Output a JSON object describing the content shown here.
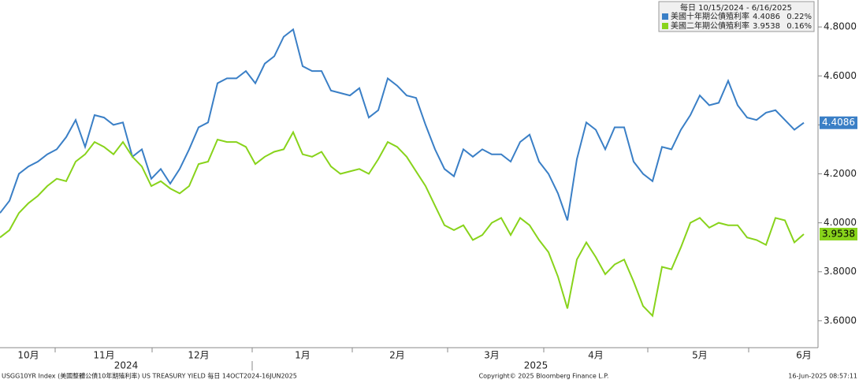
{
  "chart_data": {
    "type": "line",
    "legend_header": "每日 10/15/2024 - 6/16/2025",
    "categories": [
      null,
      null,
      null,
      "10月",
      null,
      null,
      null,
      null,
      null,
      null,
      null,
      "11月",
      null,
      null,
      null,
      null,
      null,
      null,
      null,
      null,
      null,
      "12月",
      null,
      null,
      null,
      null,
      null,
      null,
      null,
      null,
      null,
      null,
      "1月",
      null,
      null,
      null,
      null,
      null,
      null,
      null,
      null,
      null,
      "2月",
      null,
      null,
      null,
      null,
      null,
      null,
      null,
      null,
      null,
      "3月",
      null,
      null,
      null,
      null,
      null,
      null,
      null,
      null,
      null,
      null,
      "4月",
      null,
      null,
      null,
      null,
      null,
      null,
      null,
      null,
      null,
      null,
      "5月",
      null,
      null,
      null,
      null,
      null,
      null,
      null,
      null,
      null,
      null,
      "6月"
    ],
    "year_labels": [
      "2024",
      "2025"
    ],
    "series": [
      {
        "name": "美國十年期公債殖利率",
        "color": "#3a7fc6",
        "change": "0.22%",
        "values": [
          4.04,
          4.09,
          4.2,
          4.23,
          4.25,
          4.28,
          4.3,
          4.35,
          4.42,
          4.31,
          4.44,
          4.43,
          4.4,
          4.41,
          4.27,
          4.3,
          4.18,
          4.22,
          4.16,
          4.22,
          4.3,
          4.39,
          4.41,
          4.57,
          4.59,
          4.59,
          4.62,
          4.57,
          4.65,
          4.68,
          4.76,
          4.79,
          4.64,
          4.62,
          4.62,
          4.54,
          4.53,
          4.52,
          4.55,
          4.43,
          4.46,
          4.59,
          4.56,
          4.52,
          4.51,
          4.4,
          4.3,
          4.22,
          4.19,
          4.3,
          4.27,
          4.3,
          4.28,
          4.28,
          4.25,
          4.33,
          4.36,
          4.25,
          4.2,
          4.12,
          4.01,
          4.26,
          4.41,
          4.38,
          4.3,
          4.39,
          4.39,
          4.25,
          4.2,
          4.17,
          4.31,
          4.3,
          4.38,
          4.44,
          4.52,
          4.48,
          4.49,
          4.58,
          4.48,
          4.43,
          4.42,
          4.45,
          4.46,
          4.42,
          4.38,
          4.4086
        ]
      },
      {
        "name": "美國二年期公債殖利率",
        "color": "#88d31b",
        "change": "0.16%",
        "values": [
          3.94,
          3.97,
          4.04,
          4.08,
          4.11,
          4.15,
          4.18,
          4.17,
          4.25,
          4.28,
          4.33,
          4.31,
          4.28,
          4.33,
          4.27,
          4.23,
          4.15,
          4.17,
          4.14,
          4.12,
          4.15,
          4.24,
          4.25,
          4.34,
          4.33,
          4.33,
          4.31,
          4.24,
          4.27,
          4.29,
          4.3,
          4.37,
          4.28,
          4.27,
          4.29,
          4.23,
          4.2,
          4.21,
          4.22,
          4.2,
          4.26,
          4.33,
          4.31,
          4.27,
          4.21,
          4.15,
          4.07,
          3.99,
          3.97,
          3.99,
          3.93,
          3.95,
          4.0,
          4.02,
          3.95,
          4.02,
          3.99,
          3.93,
          3.88,
          3.78,
          3.65,
          3.85,
          3.92,
          3.86,
          3.79,
          3.83,
          3.85,
          3.76,
          3.66,
          3.62,
          3.82,
          3.81,
          3.9,
          4.0,
          4.02,
          3.98,
          4.0,
          3.99,
          3.99,
          3.94,
          3.93,
          3.91,
          4.02,
          4.01,
          3.92,
          3.9538
        ]
      }
    ],
    "ylim": [
      3.49,
      4.91
    ],
    "yticks": [
      {
        "value": 3.6,
        "label": "3.6000"
      },
      {
        "value": 3.8,
        "label": "3.8000"
      },
      {
        "value": 4.0,
        "label": "4.0000"
      },
      {
        "value": 4.2,
        "label": "4.2000"
      },
      {
        "value": 4.4,
        "label": "4.4000"
      },
      {
        "value": 4.6,
        "label": "4.6000"
      },
      {
        "value": 4.8,
        "label": "4.8000"
      }
    ],
    "grid": false,
    "footer": {
      "left": "USGG10YR Index (美國整體公債10年期殖利率) US TREASURY YIELD  每日 14OCT2024-16JUN2025",
      "center": "Copyright© 2025 Bloomberg Finance L.P.",
      "right": "16-Jun-2025 08:57:11"
    }
  }
}
